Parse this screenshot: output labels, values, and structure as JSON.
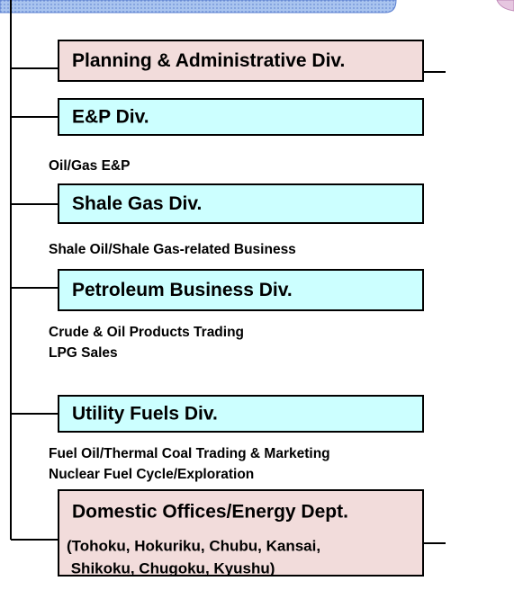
{
  "nodes": [
    {
      "label": "Planning & Administrative Div.",
      "style": "pink",
      "notes": []
    },
    {
      "label": "E&P Div.",
      "style": "cyan",
      "notes": [
        "Oil/Gas E&P"
      ]
    },
    {
      "label": "Shale Gas Div.",
      "style": "cyan",
      "notes": [
        "Shale Oil/Shale Gas-related Business"
      ]
    },
    {
      "label": "Petroleum Business Div.",
      "style": "cyan",
      "notes": [
        "Crude & Oil Products Trading",
        "LPG Sales"
      ]
    },
    {
      "label": "Utility Fuels Div.",
      "style": "cyan",
      "notes": [
        "Fuel Oil/Thermal Coal Trading & Marketing",
        "Nuclear Fuel Cycle/Exploration"
      ]
    },
    {
      "label": "Domestic Offices/Energy Dept.",
      "style": "pink",
      "sublines": [
        "(Tohoku, Hokuriku, Chubu, Kansai,",
        " Shikoku, Chugoku, Kyushu)"
      ],
      "notes": []
    }
  ]
}
